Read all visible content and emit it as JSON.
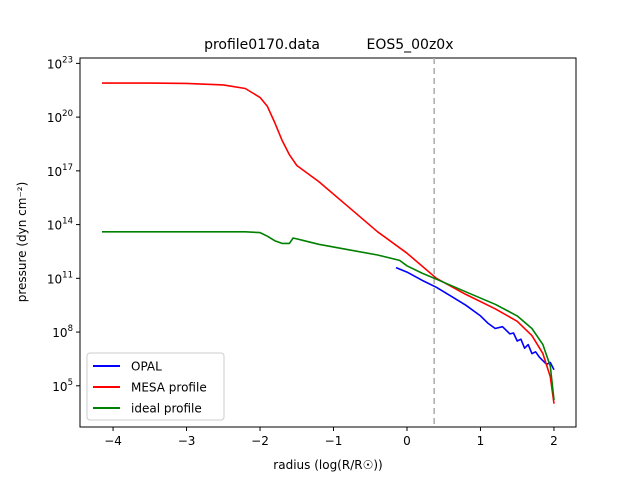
{
  "chart_data": {
    "type": "line",
    "title_left": "profile0170.data",
    "title_right": "EOS5_00z0x",
    "xlabel": "radius (log(R/R☉))",
    "ylabel": "pressure (dyn cm⁻²)",
    "xlim": [
      -4.45,
      2.3
    ],
    "ylim_log10": [
      2.7,
      23.3
    ],
    "yscale": "log",
    "xticks": [
      -4,
      -3,
      -2,
      -1,
      0,
      1,
      2
    ],
    "xtick_labels": [
      "−4",
      "−3",
      "−2",
      "−1",
      "0",
      "1",
      "2"
    ],
    "yticks_log10": [
      5,
      8,
      11,
      14,
      17,
      20,
      23
    ],
    "ytick_labels": [
      {
        "base": "10",
        "exp": "5"
      },
      {
        "base": "10",
        "exp": "8"
      },
      {
        "base": "10",
        "exp": "11"
      },
      {
        "base": "10",
        "exp": "14"
      },
      {
        "base": "10",
        "exp": "17"
      },
      {
        "base": "10",
        "exp": "20"
      },
      {
        "base": "10",
        "exp": "23"
      }
    ],
    "vline": {
      "x": 0.37,
      "color": "#aaaaaa",
      "style": "dashed"
    },
    "legend_position": "lower-left",
    "series": [
      {
        "name": "OPAL",
        "color": "#0000ff",
        "x": [
          -0.15,
          0.0,
          0.2,
          0.4,
          0.6,
          0.8,
          1.0,
          1.1,
          1.2,
          1.3,
          1.4,
          1.45,
          1.5,
          1.55,
          1.6,
          1.65,
          1.7,
          1.75,
          1.8,
          1.85,
          1.9,
          1.95,
          2.0
        ],
        "log10_y": [
          11.6,
          11.35,
          10.9,
          10.5,
          10.0,
          9.5,
          8.9,
          8.5,
          8.2,
          8.3,
          7.9,
          7.95,
          7.5,
          7.6,
          7.1,
          7.3,
          6.8,
          6.9,
          6.6,
          6.4,
          6.2,
          6.3,
          5.9
        ]
      },
      {
        "name": "MESA profile",
        "color": "#ff0000",
        "x": [
          -4.15,
          -3.5,
          -3.0,
          -2.5,
          -2.2,
          -2.0,
          -1.9,
          -1.8,
          -1.7,
          -1.6,
          -1.5,
          -1.2,
          -0.8,
          -0.4,
          0.0,
          0.4,
          0.8,
          1.2,
          1.5,
          1.7,
          1.85,
          1.95,
          2.0
        ],
        "log10_y": [
          21.9,
          21.9,
          21.88,
          21.8,
          21.6,
          21.1,
          20.6,
          19.7,
          18.7,
          17.9,
          17.3,
          16.4,
          15.0,
          13.6,
          12.4,
          11.0,
          10.1,
          9.3,
          8.6,
          7.8,
          6.8,
          5.5,
          4.0
        ]
      },
      {
        "name": "ideal profile",
        "color": "#008000",
        "x": [
          -4.15,
          -3.5,
          -3.0,
          -2.5,
          -2.2,
          -2.0,
          -1.9,
          -1.8,
          -1.7,
          -1.6,
          -1.55,
          -1.5,
          -1.4,
          -1.2,
          -0.8,
          -0.4,
          -0.1,
          0.0,
          0.2,
          0.4,
          0.8,
          1.2,
          1.5,
          1.7,
          1.85,
          1.95,
          2.0
        ],
        "log10_y": [
          13.6,
          13.6,
          13.6,
          13.6,
          13.6,
          13.55,
          13.35,
          13.1,
          12.95,
          12.95,
          13.25,
          13.2,
          13.1,
          12.9,
          12.6,
          12.3,
          12.0,
          11.7,
          11.3,
          10.95,
          10.25,
          9.55,
          8.9,
          8.2,
          7.3,
          6.1,
          4.2
        ]
      }
    ]
  }
}
